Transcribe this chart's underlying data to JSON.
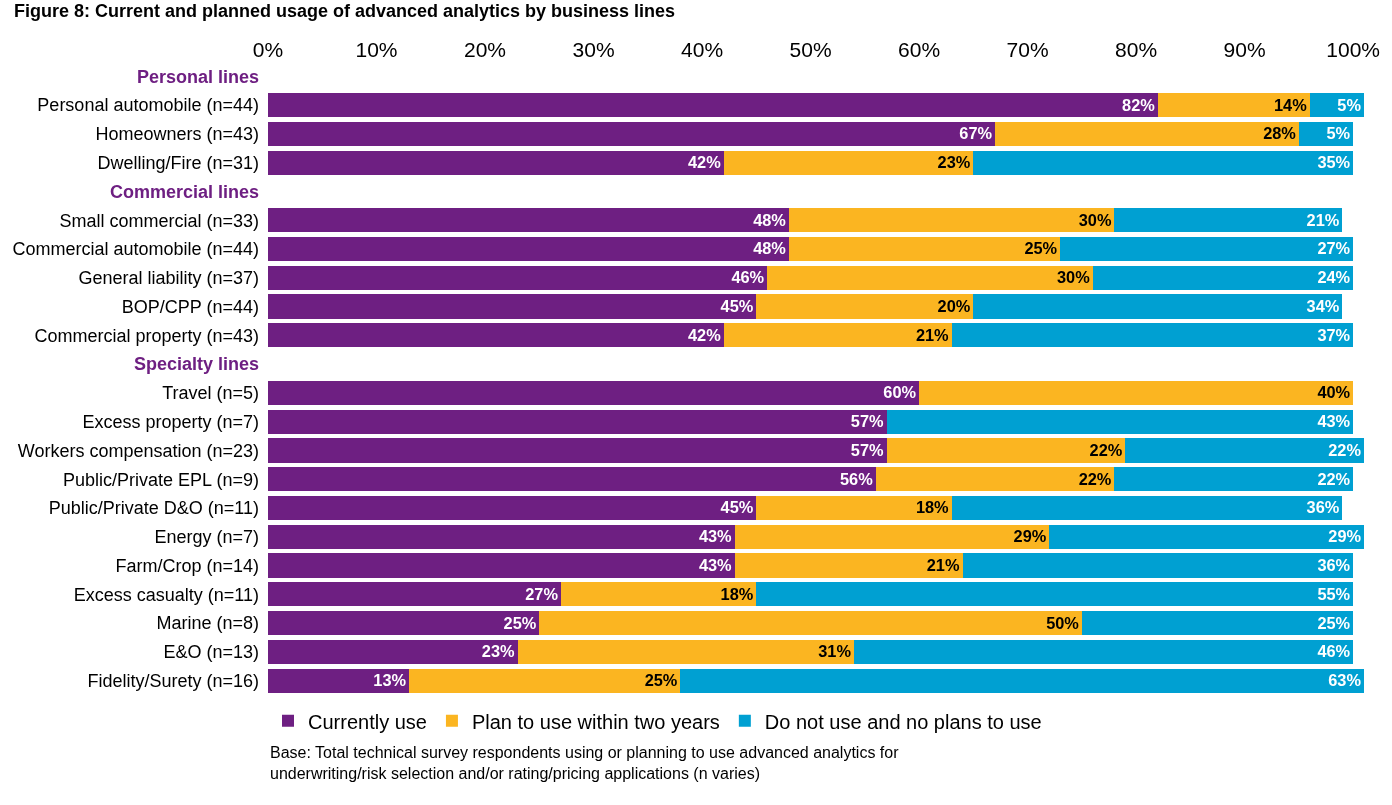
{
  "chart_data": {
    "type": "bar",
    "orientation": "horizontal",
    "stacked": true,
    "title": "Figure 8: Current and planned usage of advanced analytics by business lines",
    "categories": [
      "Personal lines",
      "Personal automobile (n=44)",
      "Homeowners (n=43)",
      "Dwelling/Fire (n=31)",
      "Commercial lines",
      "Small commercial (n=33)",
      "Commercial automobile (n=44)",
      "General liability (n=37)",
      "BOP/CPP (n=44)",
      "Commercial property (n=43)",
      "Specialty lines",
      "Travel (n=5)",
      "Excess property (n=7)",
      "Workers compensation (n=23)",
      "Public/Private EPL (n=9)",
      "Public/Private D&O (n=11)",
      "Energy (n=7)",
      "Farm/Crop (n=14)",
      "Excess casualty (n=11)",
      "Marine (n=8)",
      "E&O (n=13)",
      "Fidelity/Surety (n=16)"
    ],
    "series": [
      {
        "name": "Currently use",
        "color": "#6e1f82",
        "values": [
          null,
          82,
          67,
          42,
          null,
          48,
          48,
          46,
          45,
          42,
          null,
          60,
          57,
          57,
          56,
          45,
          43,
          43,
          27,
          25,
          23,
          13
        ],
        "value_labels": [
          null,
          "82%",
          "67%",
          "42%",
          null,
          "48%",
          "48%",
          "46%",
          "45%",
          "42%",
          null,
          "60%",
          "57%",
          "57%",
          "56%",
          "45%",
          "43%",
          "43%",
          "27%",
          "25%",
          "23%",
          "13%"
        ]
      },
      {
        "name": "Plan to use within two years",
        "color": "#fbb521",
        "values": [
          null,
          14,
          28,
          23,
          null,
          30,
          25,
          30,
          20,
          21,
          null,
          40,
          null,
          22,
          22,
          18,
          29,
          21,
          18,
          50,
          31,
          25
        ],
        "value_labels": [
          null,
          "14%",
          "28%",
          "23%",
          null,
          "30%",
          "25%",
          "30%",
          "20%",
          "21%",
          null,
          "40%",
          null,
          "22%",
          "22%",
          "18%",
          "29%",
          "21%",
          "18%",
          "50%",
          "31%",
          "25%"
        ]
      },
      {
        "name": "Do not use and no plans to use",
        "color": "#00a0d2",
        "values": [
          null,
          5,
          5,
          35,
          null,
          21,
          27,
          24,
          34,
          37,
          null,
          null,
          43,
          22,
          22,
          36,
          29,
          36,
          55,
          25,
          46,
          63
        ],
        "value_labels": [
          null,
          "5%",
          "5%",
          "35%",
          null,
          "21%",
          "27%",
          "24%",
          "34%",
          "37%",
          null,
          null,
          "43%",
          "22%",
          "22%",
          "36%",
          "29%",
          "36%",
          "55%",
          "25%",
          "46%",
          "63%"
        ]
      }
    ],
    "xlim": [
      0,
      101
    ],
    "xticks": [
      {
        "value": 0,
        "label": "0%"
      },
      {
        "value": 10,
        "label": "10%"
      },
      {
        "value": 20,
        "label": "20%"
      },
      {
        "value": 30,
        "label": "30%"
      },
      {
        "value": 40,
        "label": "40%"
      },
      {
        "value": 50,
        "label": "50%"
      },
      {
        "value": 60,
        "label": "60%"
      },
      {
        "value": 70,
        "label": "70%"
      },
      {
        "value": 80,
        "label": "80%"
      },
      {
        "value": 90,
        "label": "90%"
      },
      {
        "value": 100,
        "label": "100%"
      }
    ],
    "legend": "bottom",
    "annotations": [
      "Base: Total technical survey respondents using or planning to use advanced analytics for underwriting/risk selection and/or rating/pricing applications (n varies)"
    ]
  }
}
